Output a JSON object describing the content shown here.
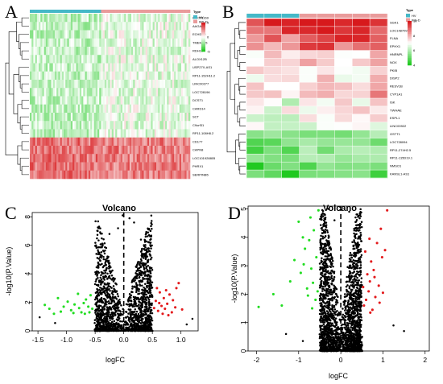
{
  "panels": [
    "A",
    "B",
    "C",
    "D"
  ],
  "chart_data": [
    {
      "type": "heatmap",
      "panel": "A",
      "legend_title": "Type",
      "legend_items": [
        {
          "label": "HV",
          "color": "#45b8c7"
        },
        {
          "label": "IBS-D",
          "color": "#e99b9b"
        }
      ],
      "scale_ticks": [
        "5",
        "0",
        "-5"
      ],
      "rows": [
        "LINC01169",
        "AAGAT",
        "ECHDC2",
        "TMEM205",
        "RDH10",
        "ALOX12B",
        "USP27X-AS1",
        "RP11-152H11.2",
        "LINC00277",
        "LOC728196",
        "DCST1",
        "CARD14",
        "SCT",
        "C9orf31",
        "RP11-108H8.2",
        "CD177",
        "CAPN8",
        "LOC101928805",
        "PHRX1",
        "SERPINB5"
      ],
      "colors": {
        "high": "#d7191c",
        "mid": "#ffffff",
        "low": "#1ec81e",
        "hv": "#45b8c7",
        "ibs": "#e99b9b"
      }
    },
    {
      "type": "heatmap",
      "panel": "B",
      "legend_title": "Type",
      "legend_items": [
        {
          "label": "HV",
          "color": "#45b8c7"
        },
        {
          "label": "IBS-D",
          "color": "#e99b9b"
        }
      ],
      "scale_ticks": [
        "10",
        "8",
        "6",
        "4"
      ],
      "rows": [
        "SGK1",
        "LOC148709",
        "FLNA",
        "EPHX1",
        "HNRNPL",
        "NOX",
        "PKIB",
        "DISP2",
        "RESV1B",
        "CYP1A1",
        "ISK",
        "YWHAE",
        "ESPL1",
        "LINC00922",
        "GSTT1",
        "LOC728094",
        "RP11-274H2.5",
        "RP11-115D19.1",
        "NMSO1",
        "KANSL1-AS1"
      ],
      "colors": {
        "high": "#d7191c",
        "mid": "#ffffff",
        "low": "#1ec81e",
        "hv": "#45b8c7",
        "ibs": "#e99b9b"
      }
    },
    {
      "type": "scatter",
      "panel": "C",
      "title": "Volcano",
      "xlabel": "logFC",
      "ylabel": "-log10(P.Value)",
      "xlim": [
        -1.6,
        1.3
      ],
      "ylim": [
        0,
        8.3
      ],
      "xticks": [
        -1.5,
        -1.0,
        -0.5,
        0.0,
        0.5,
        1.0
      ],
      "xtick_labels": [
        "-1.5",
        "-1.0",
        "-0.5",
        "0.0",
        "0.5",
        "1.0"
      ],
      "yticks": [
        0,
        2,
        4,
        6,
        8
      ],
      "fc_threshold": 0.5,
      "series": [
        {
          "name": "down",
          "color": "#22dd22",
          "points": [
            [
              -1.38,
              1.82
            ],
            [
              -1.3,
              1.55
            ],
            [
              -1.22,
              1.2
            ],
            [
              -1.15,
              2.3
            ],
            [
              -1.05,
              1.7
            ],
            [
              -0.98,
              2.05
            ],
            [
              -0.92,
              1.45
            ],
            [
              -0.86,
              1.85
            ],
            [
              -0.8,
              2.6
            ],
            [
              -0.74,
              1.3
            ],
            [
              -0.7,
              1.95
            ],
            [
              -0.66,
              2.2
            ],
            [
              -0.62,
              1.7
            ],
            [
              -0.58,
              2.5
            ],
            [
              -0.55,
              1.55
            ],
            [
              -0.68,
              1.2
            ],
            [
              -0.78,
              1.6
            ],
            [
              -0.88,
              1.25
            ],
            [
              -1.1,
              1.35
            ],
            [
              -0.6,
              1.3
            ]
          ]
        },
        {
          "name": "up",
          "color": "#e31a1c",
          "points": [
            [
              0.96,
              3.35
            ],
            [
              0.92,
              3.0
            ],
            [
              0.86,
              2.15
            ],
            [
              0.8,
              2.55
            ],
            [
              0.76,
              1.9
            ],
            [
              0.72,
              1.55
            ],
            [
              0.7,
              2.3
            ],
            [
              0.66,
              1.75
            ],
            [
              0.63,
              2.7
            ],
            [
              0.6,
              1.4
            ],
            [
              0.58,
              3.0
            ],
            [
              0.56,
              2.1
            ],
            [
              0.53,
              1.6
            ],
            [
              0.9,
              1.65
            ],
            [
              0.84,
              1.3
            ],
            [
              0.78,
              1.1
            ],
            [
              0.74,
              2.85
            ],
            [
              0.68,
              1.2
            ],
            [
              0.62,
              1.95
            ],
            [
              1.02,
              1.5
            ]
          ]
        }
      ]
    },
    {
      "type": "scatter",
      "panel": "D",
      "title": "Volcano",
      "xlabel": "logFC",
      "ylabel": "-log10(P.Value)",
      "xlim": [
        -2.2,
        2.1
      ],
      "ylim": [
        0,
        5.1
      ],
      "xticks": [
        -2,
        -1,
        0,
        1,
        2
      ],
      "xtick_labels": [
        "-2",
        "-1",
        "0",
        "1",
        "2"
      ],
      "yticks": [
        0,
        1,
        2,
        3,
        4,
        5
      ],
      "fc_threshold": 0.5,
      "series": [
        {
          "name": "down",
          "color": "#22dd22",
          "points": [
            [
              -1.95,
              1.55
            ],
            [
              -1.6,
              2.0
            ],
            [
              -1.4,
              1.6
            ],
            [
              -1.2,
              2.45
            ],
            [
              -1.1,
              3.2
            ],
            [
              -1.0,
              4.55
            ],
            [
              -0.95,
              2.75
            ],
            [
              -0.9,
              4.0
            ],
            [
              -0.85,
              3.6
            ],
            [
              -0.8,
              2.2
            ],
            [
              -0.75,
              3.9
            ],
            [
              -0.72,
              4.7
            ],
            [
              -0.7,
              2.9
            ],
            [
              -0.66,
              2.4
            ],
            [
              -0.64,
              4.25
            ],
            [
              -0.6,
              1.8
            ],
            [
              -0.58,
              3.3
            ],
            [
              -0.55,
              2.1
            ],
            [
              -0.53,
              4.95
            ],
            [
              -0.68,
              1.5
            ],
            [
              -0.78,
              1.95
            ],
            [
              -0.88,
              3.05
            ]
          ]
        },
        {
          "name": "up",
          "color": "#e31a1c",
          "points": [
            [
              1.1,
              4.95
            ],
            [
              1.05,
              3.55
            ],
            [
              0.98,
              3.3
            ],
            [
              0.95,
              4.3
            ],
            [
              0.9,
              2.3
            ],
            [
              0.86,
              3.8
            ],
            [
              0.82,
              1.9
            ],
            [
              0.78,
              2.85
            ],
            [
              0.75,
              1.45
            ],
            [
              0.72,
              3.15
            ],
            [
              0.69,
              2.45
            ],
            [
              0.66,
              2.1
            ],
            [
              0.63,
              2.7
            ],
            [
              0.6,
              1.8
            ],
            [
              0.58,
              3.5
            ],
            [
              0.55,
              1.6
            ],
            [
              0.53,
              2.25
            ],
            [
              0.68,
              3.95
            ],
            [
              0.8,
              2.6
            ],
            [
              0.92,
              1.7
            ],
            [
              1.0,
              2.05
            ],
            [
              0.7,
              1.35
            ]
          ]
        }
      ]
    }
  ]
}
